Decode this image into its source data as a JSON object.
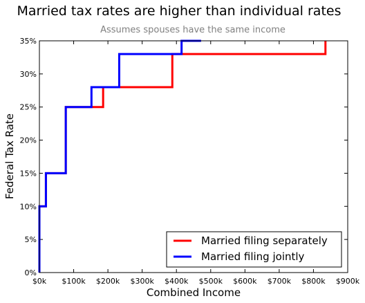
{
  "chart_data": {
    "type": "line",
    "title": "Married tax rates are higher than individual rates",
    "subtitle": "Assumes spouses have the same income",
    "xlabel": "Combined Income",
    "ylabel": "Federal Tax Rate",
    "xlim": [
      0,
      900000
    ],
    "ylim": [
      0,
      35
    ],
    "x_ticks": [
      0,
      100000,
      200000,
      300000,
      400000,
      500000,
      600000,
      700000,
      800000,
      900000
    ],
    "x_tick_labels": [
      "$0k",
      "$100k",
      "$200k",
      "$300k",
      "$400k",
      "$500k",
      "$600k",
      "$700k",
      "$800k",
      "$900k"
    ],
    "y_ticks": [
      0,
      5,
      10,
      15,
      20,
      25,
      30,
      35
    ],
    "y_tick_labels": [
      "0%",
      "5%",
      "10%",
      "15%",
      "20%",
      "25%",
      "30%",
      "35%"
    ],
    "grid": false,
    "legend_position": "bottom-right",
    "series": [
      {
        "name": "Married filing separately",
        "color": "#ff0000",
        "x": [
          0,
          0,
          19000,
          19000,
          77000,
          77000,
          150000,
          150000,
          186000,
          186000,
          388000,
          388000,
          835000,
          835000
        ],
        "y": [
          0,
          10,
          10,
          15,
          15,
          25,
          25,
          25,
          25,
          28,
          28,
          33,
          33,
          35
        ]
      },
      {
        "name": "Married filing jointly",
        "color": "#0000ff",
        "x": [
          0,
          0,
          19000,
          19000,
          77000,
          77000,
          152000,
          152000,
          233000,
          233000,
          415000,
          415000,
          472000
        ],
        "y": [
          0,
          10,
          10,
          15,
          15,
          25,
          25,
          28,
          28,
          33,
          33,
          35,
          35
        ]
      }
    ]
  }
}
